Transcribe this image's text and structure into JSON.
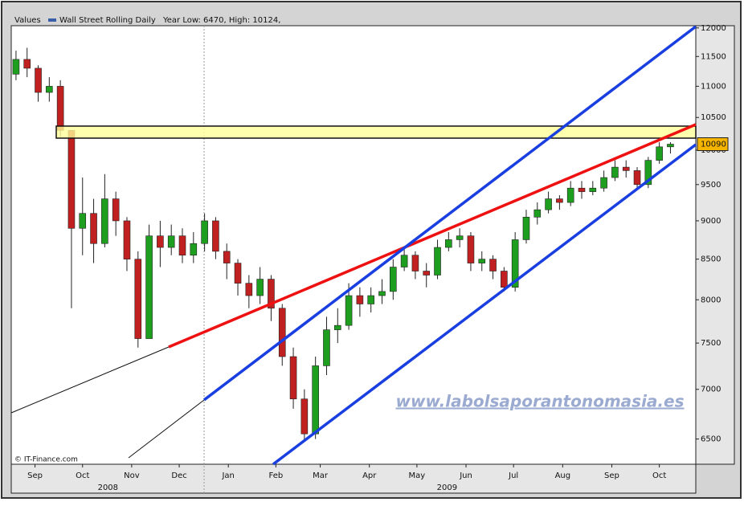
{
  "chart_data": {
    "type": "candlestick",
    "header": {
      "label": "Values",
      "series_name": "Wall Street Rolling Daily",
      "stats": "Year Low: 6470, High: 10124,"
    },
    "source": "© IT-Finance.com",
    "watermark": "www.labolsaporantonomasia.es",
    "log_scale": true,
    "grid": false,
    "up_color": "#1e9e1e",
    "down_color": "#c02020",
    "legend_color": "#3a5fa8",
    "xlim": [
      0,
      432
    ],
    "xticks": [
      {
        "value": 15,
        "label": "Sep"
      },
      {
        "value": 45,
        "label": "Oct"
      },
      {
        "value": 76,
        "label": "Nov"
      },
      {
        "value": 106,
        "label": "Dec"
      },
      {
        "value": 137,
        "label": "Jan"
      },
      {
        "value": 167,
        "label": "Feb"
      },
      {
        "value": 195,
        "label": "Mar"
      },
      {
        "value": 226,
        "label": "Apr"
      },
      {
        "value": 256,
        "label": "May"
      },
      {
        "value": 287,
        "label": "Jun"
      },
      {
        "value": 317,
        "label": "Jul"
      },
      {
        "value": 348,
        "label": "Aug"
      },
      {
        "value": 379,
        "label": "Sep"
      },
      {
        "value": 409,
        "label": "Oct"
      }
    ],
    "year_labels": [
      {
        "value": 61,
        "label": "2008"
      },
      {
        "value": 275,
        "label": "2009"
      }
    ],
    "ylim": [
      6260,
      12040
    ],
    "yticks": [
      6500,
      7000,
      7500,
      8000,
      8500,
      9000,
      9500,
      10000,
      10500,
      11000,
      11500,
      12000
    ],
    "x": [
      3,
      10,
      17,
      24,
      31,
      38,
      45,
      52,
      59,
      66,
      73,
      80,
      87,
      94,
      101,
      108,
      115,
      122,
      129,
      136,
      143,
      150,
      157,
      164,
      171,
      178,
      185,
      192,
      199,
      206,
      213,
      220,
      227,
      234,
      241,
      248,
      255,
      262,
      269,
      276,
      283,
      290,
      297,
      304,
      311,
      318,
      325,
      332,
      339,
      346,
      353,
      360,
      367,
      374,
      381,
      388,
      395,
      402,
      409,
      416
    ],
    "open": [
      11200,
      11450,
      11300,
      10900,
      11000,
      10300,
      8900,
      9100,
      8700,
      9300,
      9000,
      8500,
      7550,
      8800,
      8650,
      8800,
      8550,
      8700,
      9000,
      8600,
      8450,
      8200,
      8050,
      8250,
      7900,
      7350,
      6900,
      6550,
      7250,
      7650,
      7700,
      8050,
      7950,
      8050,
      8100,
      8400,
      8550,
      8350,
      8300,
      8650,
      8750,
      8800,
      8450,
      8500,
      8350,
      8150,
      8750,
      9050,
      9150,
      9300,
      9250,
      9450,
      9400,
      9450,
      9600,
      9750,
      9700,
      9500,
      9850,
      10050
    ],
    "high": [
      11600,
      11650,
      11350,
      11150,
      11100,
      10300,
      9600,
      9300,
      9650,
      9400,
      9050,
      8600,
      8950,
      9000,
      8950,
      8900,
      8850,
      9100,
      9050,
      8700,
      8500,
      8300,
      8400,
      8300,
      7950,
      7450,
      7000,
      7350,
      7800,
      7900,
      8200,
      8150,
      8150,
      8250,
      8500,
      8650,
      8600,
      8450,
      8750,
      8850,
      8900,
      8850,
      8600,
      8550,
      8400,
      8850,
      9150,
      9250,
      9400,
      9350,
      9550,
      9550,
      9550,
      9700,
      9850,
      9850,
      9750,
      9900,
      10120,
      10120
    ],
    "low": [
      11100,
      11150,
      10750,
      10750,
      10200,
      7900,
      8550,
      8450,
      8650,
      8800,
      8350,
      7450,
      7550,
      8400,
      8550,
      8450,
      8450,
      8600,
      8500,
      8250,
      8050,
      7900,
      7950,
      7750,
      7250,
      6800,
      6470,
      6500,
      7150,
      7500,
      7650,
      7800,
      7850,
      7950,
      8000,
      8350,
      8250,
      8150,
      8250,
      8600,
      8650,
      8350,
      8350,
      8250,
      8100,
      8100,
      8700,
      8950,
      9100,
      9150,
      9200,
      9300,
      9350,
      9400,
      9550,
      9600,
      9450,
      9450,
      9800,
      9950
    ],
    "close": [
      11450,
      11300,
      10900,
      11000,
      10300,
      8900,
      9100,
      8700,
      9300,
      9000,
      8500,
      7550,
      8800,
      8650,
      8800,
      8550,
      8700,
      9000,
      8600,
      8450,
      8200,
      8050,
      8250,
      7900,
      7350,
      6900,
      6550,
      7250,
      7650,
      7700,
      8050,
      7950,
      8050,
      8100,
      8400,
      8550,
      8350,
      8300,
      8650,
      8750,
      8800,
      8450,
      8500,
      8350,
      8150,
      8750,
      9050,
      9150,
      9300,
      9250,
      9450,
      9400,
      9450,
      9600,
      9750,
      9700,
      9500,
      9850,
      10050,
      10090
    ]
  }
}
